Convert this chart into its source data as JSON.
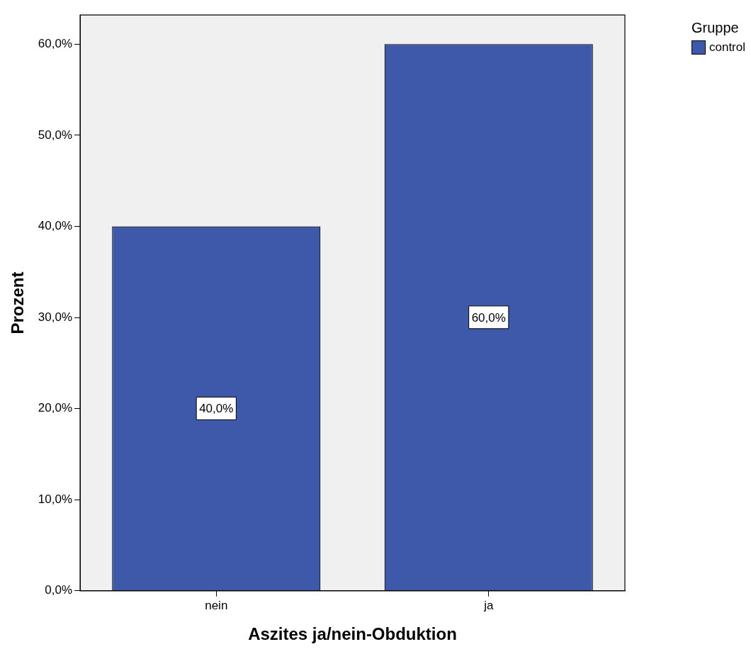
{
  "chart_data": {
    "type": "bar",
    "xlabel": "Aszites ja/nein-Obduktion",
    "ylabel": "Prozent",
    "legend_title": "Gruppe",
    "legend": "top right",
    "categories": [
      "nein",
      "ja"
    ],
    "series": [
      {
        "name": "control",
        "color": "#3f59aa",
        "values": [
          40,
          60
        ],
        "value_labels": [
          "40,0%",
          "60,0%"
        ]
      }
    ],
    "ylim": [
      0,
      63.2
    ],
    "yticks": [
      {
        "value": 0,
        "label": "0,0%"
      },
      {
        "value": 10,
        "label": "10,0%"
      },
      {
        "value": 20,
        "label": "20,0%"
      },
      {
        "value": 30,
        "label": "30,0%"
      },
      {
        "value": 40,
        "label": "40,0%"
      },
      {
        "value": 50,
        "label": "50,0%"
      },
      {
        "value": 60,
        "label": "60,0%"
      }
    ]
  }
}
